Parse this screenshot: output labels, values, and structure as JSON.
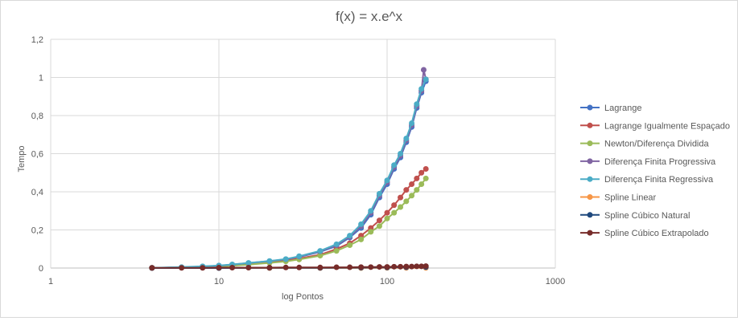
{
  "chart_data": {
    "type": "scatter",
    "title": "f(x) = x.e^x",
    "xlabel": "log Pontos",
    "ylabel": "Tempo",
    "x_scale": "log",
    "xlim": [
      1,
      1000
    ],
    "ylim": [
      0,
      1.2
    ],
    "x_tick_labels": [
      "1",
      "10",
      "100",
      "1000"
    ],
    "y_tick_labels": [
      "0",
      "0,2",
      "0,4",
      "0,6",
      "0,8",
      "1",
      "1,2"
    ],
    "grid": true,
    "legend_position": "right",
    "series": [
      {
        "name": "Lagrange",
        "color": "#4472c4",
        "x": [
          4,
          6,
          8,
          10,
          12,
          15,
          20,
          25,
          30,
          40,
          50,
          60,
          70,
          80,
          90,
          100,
          110,
          120,
          130,
          140,
          150,
          160,
          170
        ],
        "y": [
          0.001,
          0.004,
          0.008,
          0.012,
          0.018,
          0.025,
          0.035,
          0.045,
          0.058,
          0.085,
          0.115,
          0.16,
          0.21,
          0.28,
          0.37,
          0.44,
          0.52,
          0.58,
          0.66,
          0.74,
          0.84,
          0.92,
          0.98
        ]
      },
      {
        "name": "Lagrange Igualmente Espaçado",
        "color": "#c0504d",
        "x": [
          4,
          6,
          8,
          10,
          12,
          15,
          20,
          25,
          30,
          40,
          50,
          60,
          70,
          80,
          90,
          100,
          110,
          120,
          130,
          140,
          150,
          160,
          170
        ],
        "y": [
          0.001,
          0.003,
          0.006,
          0.009,
          0.013,
          0.02,
          0.03,
          0.038,
          0.05,
          0.07,
          0.1,
          0.13,
          0.17,
          0.21,
          0.25,
          0.29,
          0.33,
          0.37,
          0.41,
          0.44,
          0.47,
          0.5,
          0.52
        ]
      },
      {
        "name": "Newton/Diferença Dividida",
        "color": "#9bbb59",
        "x": [
          4,
          6,
          8,
          10,
          12,
          15,
          20,
          25,
          30,
          40,
          50,
          60,
          70,
          80,
          90,
          100,
          110,
          120,
          130,
          140,
          150,
          160,
          170
        ],
        "y": [
          0.001,
          0.003,
          0.005,
          0.008,
          0.012,
          0.018,
          0.027,
          0.035,
          0.045,
          0.065,
          0.09,
          0.12,
          0.15,
          0.19,
          0.22,
          0.26,
          0.29,
          0.32,
          0.35,
          0.38,
          0.41,
          0.44,
          0.47
        ]
      },
      {
        "name": "Diferença Finita Progressiva",
        "color": "#8064a2",
        "x": [
          4,
          6,
          8,
          10,
          12,
          15,
          20,
          25,
          30,
          40,
          50,
          60,
          70,
          80,
          90,
          100,
          110,
          120,
          130,
          140,
          150,
          160,
          165,
          170
        ],
        "y": [
          0.001,
          0.004,
          0.008,
          0.012,
          0.018,
          0.026,
          0.036,
          0.046,
          0.06,
          0.088,
          0.12,
          0.165,
          0.22,
          0.29,
          0.38,
          0.45,
          0.53,
          0.59,
          0.67,
          0.75,
          0.85,
          0.93,
          1.04,
          0.99
        ]
      },
      {
        "name": "Diferença Finita Regressiva",
        "color": "#4bacc6",
        "x": [
          4,
          6,
          8,
          10,
          12,
          15,
          20,
          25,
          30,
          40,
          50,
          60,
          70,
          80,
          90,
          100,
          110,
          120,
          130,
          140,
          150,
          160,
          170
        ],
        "y": [
          0.001,
          0.005,
          0.009,
          0.013,
          0.019,
          0.027,
          0.037,
          0.047,
          0.062,
          0.09,
          0.125,
          0.17,
          0.23,
          0.3,
          0.39,
          0.46,
          0.54,
          0.6,
          0.68,
          0.76,
          0.86,
          0.94,
          0.99
        ]
      },
      {
        "name": "Spline Linear",
        "color": "#f79646",
        "x": [
          4,
          10,
          20,
          40,
          70,
          100,
          130,
          170
        ],
        "y": [
          0.0,
          0.0,
          0.0,
          0.0,
          0.0,
          0.001,
          0.001,
          0.001
        ]
      },
      {
        "name": "Spline Cúbico Natural",
        "color": "#1f497d",
        "x": [
          4,
          10,
          20,
          40,
          70,
          100,
          130,
          170
        ],
        "y": [
          0.0,
          0.0,
          0.001,
          0.001,
          0.002,
          0.003,
          0.004,
          0.005
        ]
      },
      {
        "name": "Spline Cúbico Extrapolado",
        "color": "#772c2a",
        "x": [
          4,
          6,
          8,
          10,
          12,
          15,
          20,
          25,
          30,
          40,
          50,
          60,
          70,
          80,
          90,
          100,
          110,
          120,
          130,
          140,
          150,
          160,
          170
        ],
        "y": [
          0.001,
          0.001,
          0.001,
          0.002,
          0.002,
          0.002,
          0.002,
          0.003,
          0.003,
          0.003,
          0.004,
          0.004,
          0.005,
          0.005,
          0.006,
          0.006,
          0.007,
          0.007,
          0.008,
          0.008,
          0.009,
          0.009,
          0.01
        ]
      }
    ]
  }
}
